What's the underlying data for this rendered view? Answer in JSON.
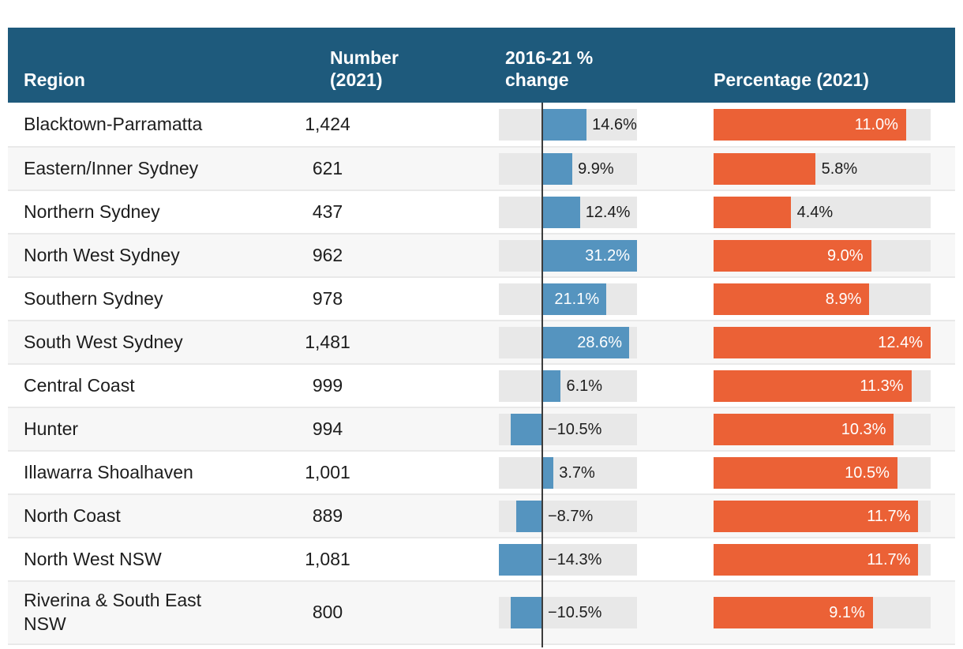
{
  "header": {
    "region": "Region",
    "number": "Number (2021)",
    "change": "2016-21 % change",
    "percentage": "Percentage (2021)"
  },
  "colors": {
    "header_bg": "#1e5a7c",
    "change_bar": "#5594bf",
    "percentage_bar": "#eb6136",
    "bar_track": "#e8e8e8",
    "row_alt": "#f7f7f7",
    "zero_line": "#3c3c3c",
    "header_text": "#ffffff",
    "body_text": "#1d1d1d"
  },
  "chart_data": {
    "type": "table",
    "title": "",
    "columns": [
      "Region",
      "Number (2021)",
      "2016-21 % change",
      "Percentage (2021)"
    ],
    "change_axis": {
      "min": -14.3,
      "max": 31.2,
      "zero_line": true
    },
    "percentage_axis": {
      "min": 0,
      "max": 12.4
    },
    "legend": "none",
    "rows": [
      {
        "region": "Blacktown-Parramatta",
        "number": "1,424",
        "change_pct": 14.6,
        "change_label": "14.6%",
        "percentage_pct": 11.0,
        "percentage_label": "11.0%"
      },
      {
        "region": "Eastern/Inner Sydney",
        "number": "621",
        "change_pct": 9.9,
        "change_label": "9.9%",
        "percentage_pct": 5.8,
        "percentage_label": "5.8%"
      },
      {
        "region": "Northern Sydney",
        "number": "437",
        "change_pct": 12.4,
        "change_label": "12.4%",
        "percentage_pct": 4.4,
        "percentage_label": "4.4%"
      },
      {
        "region": "North West Sydney",
        "number": "962",
        "change_pct": 31.2,
        "change_label": "31.2%",
        "percentage_pct": 9.0,
        "percentage_label": "9.0%"
      },
      {
        "region": "Southern Sydney",
        "number": "978",
        "change_pct": 21.1,
        "change_label": "21.1%",
        "percentage_pct": 8.9,
        "percentage_label": "8.9%"
      },
      {
        "region": "South West Sydney",
        "number": "1,481",
        "change_pct": 28.6,
        "change_label": "28.6%",
        "percentage_pct": 12.4,
        "percentage_label": "12.4%"
      },
      {
        "region": "Central Coast",
        "number": "999",
        "change_pct": 6.1,
        "change_label": "6.1%",
        "percentage_pct": 11.3,
        "percentage_label": "11.3%"
      },
      {
        "region": "Hunter",
        "number": "994",
        "change_pct": -10.5,
        "change_label": "−10.5%",
        "percentage_pct": 10.3,
        "percentage_label": "10.3%"
      },
      {
        "region": "Illawarra Shoalhaven",
        "number": "1,001",
        "change_pct": 3.7,
        "change_label": "3.7%",
        "percentage_pct": 10.5,
        "percentage_label": "10.5%"
      },
      {
        "region": "North Coast",
        "number": "889",
        "change_pct": -8.7,
        "change_label": "−8.7%",
        "percentage_pct": 11.7,
        "percentage_label": "11.7%"
      },
      {
        "region": "North West NSW",
        "number": "1,081",
        "change_pct": -14.3,
        "change_label": "−14.3%",
        "percentage_pct": 11.7,
        "percentage_label": "11.7%"
      },
      {
        "region": "Riverina & South East NSW",
        "number": "800",
        "change_pct": -10.5,
        "change_label": "−10.5%",
        "percentage_pct": 9.1,
        "percentage_label": "9.1%"
      }
    ]
  }
}
